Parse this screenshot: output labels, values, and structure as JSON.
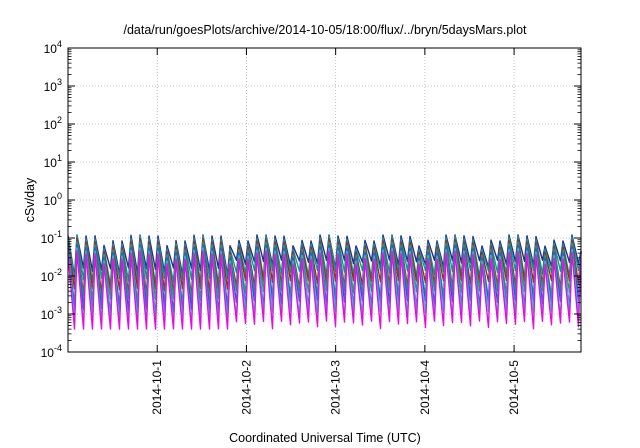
{
  "chart_data": {
    "type": "line",
    "title": "/data/run/goesPlots/archive/2014-10-05/18:00/flux/../bryn/5daysMars.plot",
    "xlabel": "Coordinated Universal Time (UTC)",
    "ylabel": "cSv/day",
    "yscale": "log",
    "ylim": [
      0.0001,
      10000
    ],
    "xlim_days": [
      0,
      5.75
    ],
    "grid": true,
    "y_ticks": [
      {
        "base": "10",
        "exp": "-4",
        "value": 0.0001
      },
      {
        "base": "10",
        "exp": "-3",
        "value": 0.001
      },
      {
        "base": "10",
        "exp": "-2",
        "value": 0.01
      },
      {
        "base": "10",
        "exp": "-1",
        "value": 0.1
      },
      {
        "base": "10",
        "exp": "0",
        "value": 1
      },
      {
        "base": "10",
        "exp": "1",
        "value": 10
      },
      {
        "base": "10",
        "exp": "2",
        "value": 100
      },
      {
        "base": "10",
        "exp": "3",
        "value": 1000
      },
      {
        "base": "10",
        "exp": "4",
        "value": 10000
      }
    ],
    "x_ticks": [
      {
        "label": "2014-10-1",
        "day": 1
      },
      {
        "label": "2014-10-2",
        "day": 2
      },
      {
        "label": "2014-10-3",
        "day": 3
      },
      {
        "label": "2014-10-4",
        "day": 4
      },
      {
        "label": "2014-10-5",
        "day": 5
      }
    ],
    "series_colors": [
      "#2a2a8a",
      "#00a0a0",
      "#b02020",
      "#2fa060",
      "#3050e0",
      "#30c0e0",
      "#e010e0"
    ],
    "oscillation": {
      "cycles": 57,
      "peak_range": [
        0.03,
        0.12
      ],
      "trough_range": [
        0.0005,
        0.02
      ]
    }
  }
}
